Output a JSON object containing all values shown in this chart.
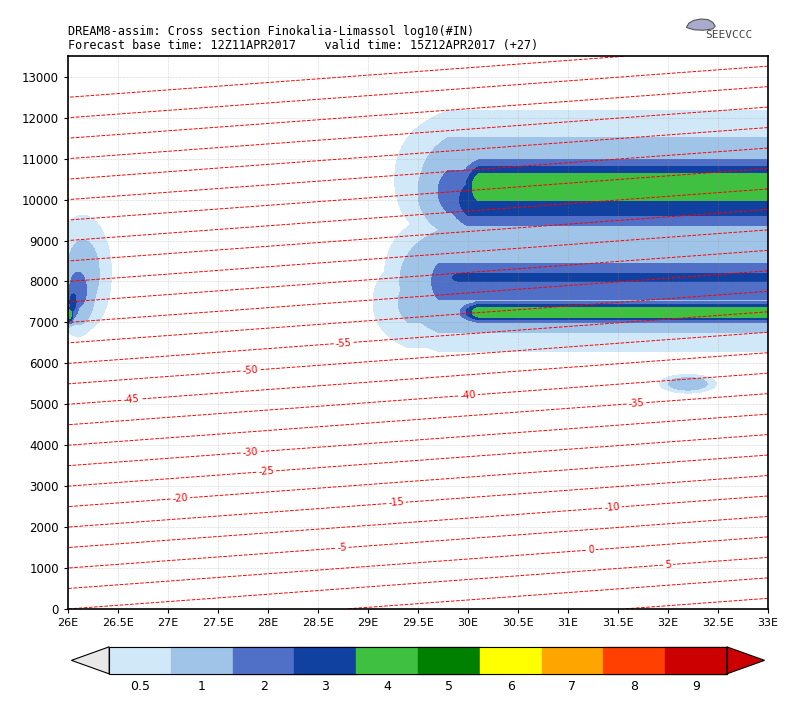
{
  "title_line1": "DREAM8-assim: Cross section Finokalia-Limassol log10(#IN)",
  "title_line2": "Forecast base time: 12Z11APR2017    valid time: 15Z12APR2017 (+27)",
  "xlabel_ticks": [
    "26E",
    "26.5E",
    "27E",
    "27.5E",
    "28E",
    "28.5E",
    "29E",
    "29.5E",
    "30E",
    "30.5E",
    "31E",
    "31.5E",
    "32E",
    "32.5E",
    "33E"
  ],
  "xlabel_vals": [
    26.0,
    26.5,
    27.0,
    27.5,
    28.0,
    28.5,
    29.0,
    29.5,
    30.0,
    30.5,
    31.0,
    31.5,
    32.0,
    32.5,
    33.0
  ],
  "ylim": [
    0,
    13500
  ],
  "xlim": [
    26.0,
    33.0
  ],
  "ytick_vals": [
    0,
    1000,
    2000,
    3000,
    4000,
    5000,
    6000,
    7000,
    8000,
    9000,
    10000,
    11000,
    12000,
    13000
  ],
  "fill_levels": [
    0.5,
    1,
    2,
    3,
    4,
    5,
    6,
    7,
    8,
    9,
    11
  ],
  "fill_colors": [
    "#d0e8f8",
    "#a0c4e8",
    "#5070c8",
    "#1040a0",
    "#40c040",
    "#008000",
    "#ffff00",
    "#ffa500",
    "#ff4000",
    "#cc0000"
  ],
  "background_color": "#ffffff",
  "grid_color": "#888888",
  "contour_color": "red",
  "logo_text": "SEEVCCC",
  "cb_colors": [
    "#d0e8f8",
    "#a0c4e8",
    "#5070c8",
    "#1040a0",
    "#40c040",
    "#008000",
    "#ffff00",
    "#ffa500",
    "#ff4000",
    "#cc0000"
  ],
  "cb_labels": [
    "0.5",
    "1",
    "2",
    "3",
    "4",
    "5",
    "6",
    "7",
    "8",
    "9"
  ]
}
